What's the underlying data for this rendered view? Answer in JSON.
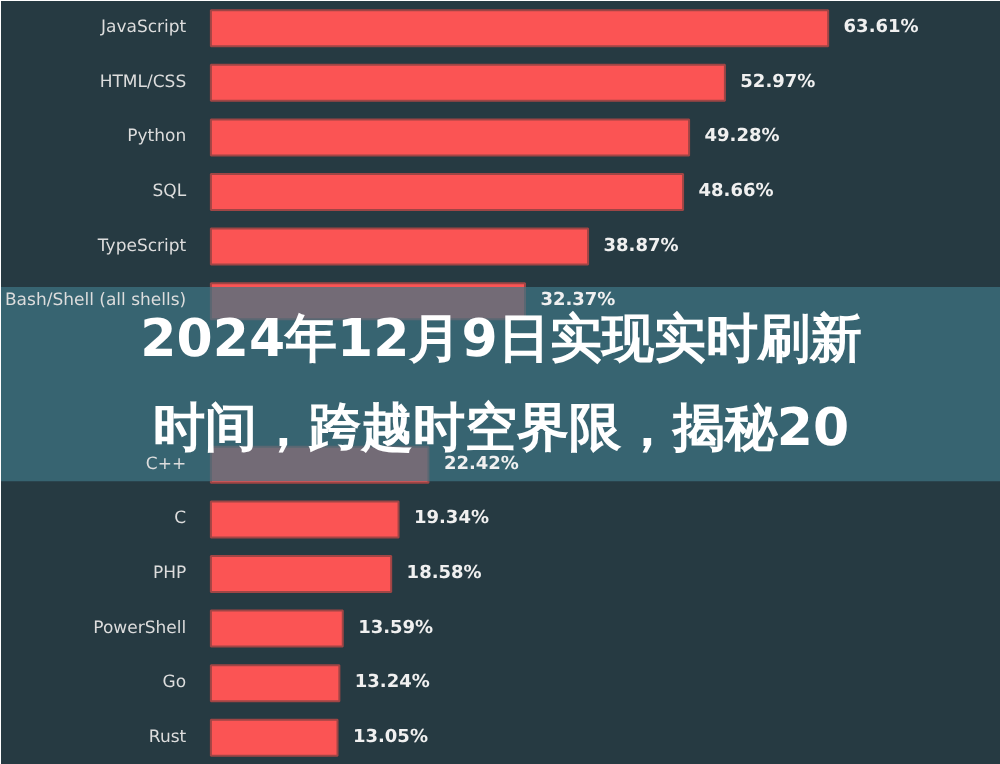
{
  "chart_data": {
    "type": "bar",
    "orientation": "horizontal",
    "color": "#fb5454",
    "categories": [
      "JavaScript",
      "HTML/CSS",
      "Python",
      "SQL",
      "TypeScript",
      "Bash/Shell (all shells)",
      null,
      null,
      "C++",
      "C",
      "PHP",
      "PowerShell",
      "Go",
      "Rust"
    ],
    "values": [
      63.61,
      52.97,
      49.28,
      48.66,
      38.87,
      32.37,
      null,
      null,
      22.42,
      19.34,
      18.58,
      13.59,
      13.24,
      13.05
    ],
    "value_labels": [
      "63.61%",
      "52.97%",
      "49.28%",
      "48.66%",
      "38.87%",
      "32.37%",
      null,
      null,
      "22.42%",
      "19.34%",
      "18.58%",
      "13.59%",
      "13.24%",
      "13.05%"
    ],
    "annotations": [
      "2024年12月9日实现实时刷新",
      "时间，跨越时空界限，揭秘20"
    ]
  }
}
